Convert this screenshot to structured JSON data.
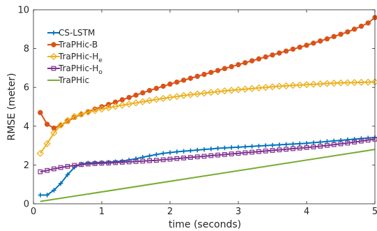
{
  "chart_data": {
    "type": "line",
    "xlabel": "time (seconds)",
    "ylabel": "RMSE (meter)",
    "xlim": [
      0,
      5
    ],
    "ylim": [
      0,
      10
    ],
    "xticks": [
      0,
      1,
      2,
      3,
      4,
      5
    ],
    "yticks": [
      0,
      2,
      4,
      6,
      8,
      10
    ],
    "grid": false,
    "legend_position": "top-left",
    "series": [
      {
        "name": "CS-LSTM",
        "name_parts": [
          "CS-LSTM",
          ""
        ],
        "color": "#0072bd",
        "marker": "plus",
        "x": [
          0.1,
          0.2,
          0.3,
          0.4,
          0.5,
          0.6,
          0.7,
          0.8,
          0.9,
          1.0,
          1.1,
          1.2,
          1.3,
          1.4,
          1.5,
          1.6,
          1.7,
          1.8,
          1.9,
          2.0,
          2.1,
          2.2,
          2.3,
          2.4,
          2.5,
          2.6,
          2.7,
          2.8,
          2.9,
          3.0,
          3.1,
          3.2,
          3.3,
          3.4,
          3.5,
          3.6,
          3.7,
          3.8,
          3.9,
          4.0,
          4.1,
          4.2,
          4.3,
          4.4,
          4.5,
          4.6,
          4.7,
          4.8,
          4.9,
          5.0
        ],
        "y": [
          0.45,
          0.45,
          0.7,
          1.05,
          1.5,
          1.88,
          2.05,
          2.1,
          2.12,
          2.13,
          2.14,
          2.17,
          2.2,
          2.26,
          2.32,
          2.4,
          2.47,
          2.54,
          2.6,
          2.64,
          2.68,
          2.71,
          2.74,
          2.77,
          2.8,
          2.83,
          2.86,
          2.88,
          2.9,
          2.92,
          2.94,
          2.96,
          2.98,
          3.0,
          3.02,
          3.04,
          3.06,
          3.08,
          3.1,
          3.12,
          3.15,
          3.18,
          3.21,
          3.24,
          3.27,
          3.3,
          3.33,
          3.36,
          3.39,
          3.42
        ]
      },
      {
        "name": "TraPHic-B",
        "name_parts": [
          "TraPHic-B",
          ""
        ],
        "color": "#d95319",
        "marker": "circle",
        "x": [
          0.1,
          0.2,
          0.3,
          0.4,
          0.5,
          0.6,
          0.7,
          0.8,
          0.9,
          1.0,
          1.1,
          1.2,
          1.3,
          1.4,
          1.5,
          1.6,
          1.7,
          1.8,
          1.9,
          2.0,
          2.1,
          2.2,
          2.3,
          2.4,
          2.5,
          2.6,
          2.7,
          2.8,
          2.9,
          3.0,
          3.1,
          3.2,
          3.3,
          3.4,
          3.5,
          3.6,
          3.7,
          3.8,
          3.9,
          4.0,
          4.1,
          4.2,
          4.3,
          4.4,
          4.5,
          4.6,
          4.7,
          4.8,
          4.9,
          5.0
        ],
        "y": [
          4.7,
          4.1,
          3.9,
          4.05,
          4.25,
          4.45,
          4.6,
          4.75,
          4.88,
          5.0,
          5.12,
          5.24,
          5.36,
          5.48,
          5.6,
          5.72,
          5.84,
          5.95,
          6.06,
          6.17,
          6.27,
          6.37,
          6.47,
          6.57,
          6.67,
          6.77,
          6.87,
          6.97,
          7.07,
          7.17,
          7.27,
          7.37,
          7.47,
          7.57,
          7.67,
          7.77,
          7.87,
          7.97,
          8.07,
          8.17,
          8.28,
          8.39,
          8.5,
          8.62,
          8.74,
          8.86,
          9.0,
          9.15,
          9.32,
          9.6
        ]
      },
      {
        "name": "TraPHic-He",
        "name_parts": [
          "TraPHic-H",
          "e"
        ],
        "color": "#edb120",
        "marker": "diamond",
        "x": [
          0.1,
          0.2,
          0.3,
          0.4,
          0.5,
          0.6,
          0.7,
          0.8,
          0.9,
          1.0,
          1.1,
          1.2,
          1.3,
          1.4,
          1.5,
          1.6,
          1.7,
          1.8,
          1.9,
          2.0,
          2.1,
          2.2,
          2.3,
          2.4,
          2.5,
          2.6,
          2.7,
          2.8,
          2.9,
          3.0,
          3.1,
          3.2,
          3.3,
          3.4,
          3.5,
          3.6,
          3.7,
          3.8,
          3.9,
          4.0,
          4.1,
          4.2,
          4.3,
          4.4,
          4.5,
          4.6,
          4.7,
          4.8,
          4.9,
          5.0
        ],
        "y": [
          2.6,
          3.1,
          3.65,
          4.05,
          4.3,
          4.5,
          4.62,
          4.72,
          4.8,
          4.88,
          4.95,
          5.02,
          5.08,
          5.14,
          5.2,
          5.26,
          5.32,
          5.38,
          5.43,
          5.48,
          5.53,
          5.58,
          5.62,
          5.66,
          5.7,
          5.74,
          5.78,
          5.82,
          5.85,
          5.88,
          5.91,
          5.94,
          5.97,
          6.0,
          6.03,
          6.06,
          6.08,
          6.1,
          6.12,
          6.14,
          6.16,
          6.18,
          6.2,
          6.22,
          6.23,
          6.24,
          6.25,
          6.26,
          6.27,
          6.28
        ]
      },
      {
        "name": "TraPHic-Ho",
        "name_parts": [
          "TraPHic-H",
          "o"
        ],
        "color": "#7e2f8e",
        "marker": "square",
        "x": [
          0.1,
          0.2,
          0.3,
          0.4,
          0.5,
          0.6,
          0.7,
          0.8,
          0.9,
          1.0,
          1.1,
          1.2,
          1.3,
          1.4,
          1.5,
          1.6,
          1.7,
          1.8,
          1.9,
          2.0,
          2.1,
          2.2,
          2.3,
          2.4,
          2.5,
          2.6,
          2.7,
          2.8,
          2.9,
          3.0,
          3.1,
          3.2,
          3.3,
          3.4,
          3.5,
          3.6,
          3.7,
          3.8,
          3.9,
          4.0,
          4.1,
          4.2,
          4.3,
          4.4,
          4.5,
          4.6,
          4.7,
          4.8,
          4.9,
          5.0
        ],
        "y": [
          1.65,
          1.72,
          1.8,
          1.87,
          1.93,
          1.98,
          2.02,
          2.05,
          2.07,
          2.09,
          2.1,
          2.12,
          2.14,
          2.16,
          2.18,
          2.2,
          2.22,
          2.24,
          2.27,
          2.3,
          2.33,
          2.36,
          2.39,
          2.42,
          2.45,
          2.48,
          2.51,
          2.54,
          2.57,
          2.6,
          2.63,
          2.66,
          2.69,
          2.72,
          2.75,
          2.78,
          2.81,
          2.84,
          2.87,
          2.9,
          2.93,
          2.97,
          3.01,
          3.05,
          3.09,
          3.13,
          3.18,
          3.23,
          3.28,
          3.33
        ]
      },
      {
        "name": "TraPHic",
        "name_parts": [
          "TraPHic",
          ""
        ],
        "color": "#77ac30",
        "marker": "none",
        "x": [
          0.1,
          5.0
        ],
        "y": [
          0.12,
          2.8
        ]
      }
    ]
  }
}
